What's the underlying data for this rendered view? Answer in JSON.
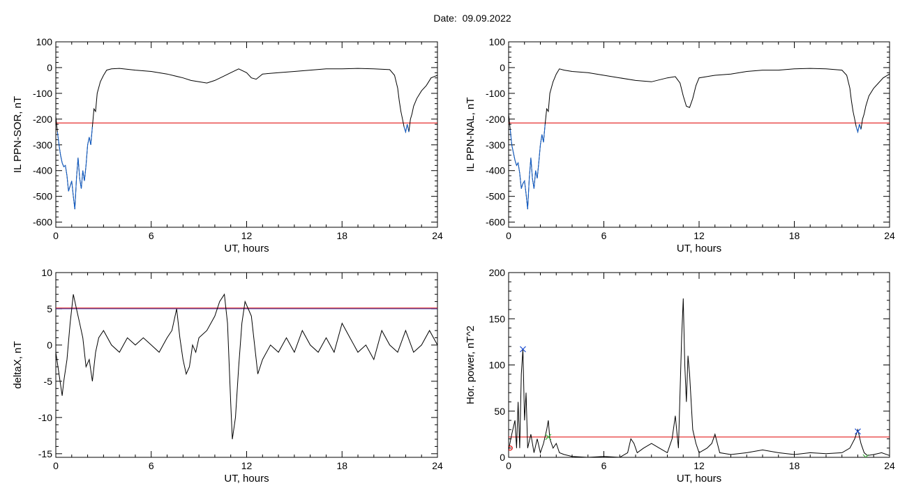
{
  "figure": {
    "title": "Date:  09.09.2022"
  },
  "chart_data": [
    {
      "type": "line",
      "ylabel": "IL PPN-SOR, nT",
      "xlabel": "UT, hours",
      "xlim": [
        0,
        24
      ],
      "ylim": [
        -620,
        100
      ],
      "xticks": [
        0,
        6,
        12,
        18,
        24
      ],
      "yticks": [
        100,
        0,
        -100,
        -200,
        -300,
        -400,
        -500,
        -600
      ],
      "threshold": {
        "value": -215,
        "color": "#e00000"
      },
      "series": [
        {
          "color": "#000000",
          "x": [
            0,
            0.1,
            0.2,
            0.3,
            0.4,
            0.5,
            0.6,
            0.7,
            0.8,
            0.9,
            1.0,
            1.1,
            1.2,
            1.3,
            1.4,
            1.5,
            1.6,
            1.7,
            1.8,
            1.9,
            2.0,
            2.1,
            2.2,
            2.3,
            2.4,
            2.5,
            2.6,
            2.8,
            3.0,
            3.2,
            3.5,
            4,
            5,
            6,
            7,
            8,
            8.5,
            9,
            9.5,
            10,
            10.5,
            11,
            11.5,
            12,
            12.3,
            12.6,
            13,
            14,
            15,
            16,
            17,
            18,
            19,
            20,
            21,
            21.3,
            21.5,
            21.6,
            21.7,
            21.8,
            21.9,
            22.0,
            22.1,
            22.2,
            22.3,
            22.4,
            22.5,
            22.7,
            23.0,
            23.3,
            23.6,
            24.0
          ],
          "y": [
            -190,
            -250,
            -300,
            -340,
            -370,
            -385,
            -380,
            -420,
            -480,
            -460,
            -440,
            -500,
            -550,
            -430,
            -350,
            -430,
            -470,
            -400,
            -440,
            -380,
            -300,
            -270,
            -300,
            -230,
            -160,
            -170,
            -100,
            -55,
            -30,
            -10,
            -5,
            -3,
            -10,
            -15,
            -25,
            -40,
            -50,
            -55,
            -60,
            -50,
            -35,
            -20,
            -5,
            -20,
            -40,
            -45,
            -25,
            -20,
            -15,
            -10,
            -5,
            -5,
            -3,
            -5,
            -8,
            -30,
            -80,
            -130,
            -170,
            -200,
            -230,
            -250,
            -220,
            -250,
            -200,
            -180,
            -150,
            -120,
            -90,
            -70,
            -40,
            -30
          ]
        },
        {
          "color": "#1060d0",
          "x": [
            0.1,
            0.2,
            0.3,
            0.4,
            0.5,
            0.6,
            0.7,
            0.8,
            0.9,
            1.0,
            1.1,
            1.2,
            1.3,
            1.4,
            1.5,
            1.6,
            1.7,
            1.8,
            1.9,
            2.0,
            2.1,
            2.2,
            2.3
          ],
          "y": [
            -250,
            -300,
            -340,
            -370,
            -385,
            -380,
            -420,
            -480,
            -460,
            -440,
            -500,
            -550,
            -430,
            -350,
            -430,
            -470,
            -400,
            -440,
            -380,
            -300,
            -270,
            -300,
            -230
          ]
        },
        {
          "color": "#1060d0",
          "x": [
            21.9,
            22.0,
            22.1,
            22.2
          ],
          "y": [
            -230,
            -250,
            -220,
            -250
          ]
        }
      ]
    },
    {
      "type": "line",
      "ylabel": "IL PPN-NAL, nT",
      "xlabel": "UT, hours",
      "xlim": [
        0,
        24
      ],
      "ylim": [
        -620,
        100
      ],
      "xticks": [
        0,
        6,
        12,
        18,
        24
      ],
      "yticks": [
        100,
        0,
        -100,
        -200,
        -300,
        -400,
        -500,
        -600
      ],
      "threshold": {
        "value": -215,
        "color": "#e00000"
      },
      "series": [
        {
          "color": "#000000",
          "x": [
            0,
            0.1,
            0.2,
            0.3,
            0.4,
            0.5,
            0.6,
            0.7,
            0.8,
            0.9,
            1.0,
            1.1,
            1.2,
            1.3,
            1.4,
            1.5,
            1.6,
            1.7,
            1.8,
            1.9,
            2.0,
            2.1,
            2.2,
            2.3,
            2.4,
            2.5,
            2.6,
            2.8,
            3.0,
            3.2,
            3.5,
            4,
            5,
            6,
            7,
            8,
            9,
            10,
            10.5,
            10.8,
            11.0,
            11.2,
            11.4,
            11.6,
            11.8,
            12,
            13,
            14,
            15,
            16,
            17,
            18,
            19,
            20,
            21,
            21.3,
            21.5,
            21.6,
            21.7,
            21.8,
            21.9,
            22.0,
            22.1,
            22.2,
            22.3,
            22.4,
            22.5,
            22.7,
            23.0,
            23.3,
            23.6,
            24.0
          ],
          "y": [
            -180,
            -240,
            -300,
            -330,
            -360,
            -380,
            -370,
            -410,
            -470,
            -450,
            -440,
            -490,
            -550,
            -430,
            -350,
            -430,
            -470,
            -400,
            -430,
            -370,
            -300,
            -260,
            -290,
            -220,
            -160,
            -170,
            -100,
            -55,
            -25,
            -5,
            -10,
            -15,
            -20,
            -30,
            -40,
            -50,
            -55,
            -40,
            -35,
            -60,
            -110,
            -150,
            -155,
            -120,
            -70,
            -40,
            -30,
            -25,
            -15,
            -10,
            -10,
            -5,
            -3,
            -5,
            -10,
            -30,
            -80,
            -130,
            -170,
            -200,
            -230,
            -250,
            -220,
            -240,
            -200,
            -180,
            -150,
            -110,
            -80,
            -60,
            -40,
            -25
          ]
        },
        {
          "color": "#1060d0",
          "x": [
            0.1,
            0.2,
            0.3,
            0.4,
            0.5,
            0.6,
            0.7,
            0.8,
            0.9,
            1.0,
            1.1,
            1.2,
            1.3,
            1.4,
            1.5,
            1.6,
            1.7,
            1.8,
            1.9,
            2.0,
            2.1,
            2.2,
            2.3
          ],
          "y": [
            -240,
            -300,
            -330,
            -360,
            -380,
            -370,
            -410,
            -470,
            -450,
            -440,
            -490,
            -550,
            -430,
            -350,
            -430,
            -470,
            -400,
            -430,
            -370,
            -300,
            -260,
            -290,
            -220
          ]
        },
        {
          "color": "#1060d0",
          "x": [
            21.9,
            22.0,
            22.1,
            22.2
          ],
          "y": [
            -230,
            -250,
            -220,
            -240
          ]
        }
      ]
    },
    {
      "type": "line",
      "ylabel": "deltaX, nT",
      "xlabel": "UT, hours",
      "xlim": [
        0,
        24
      ],
      "ylim": [
        -15.5,
        10
      ],
      "xticks": [
        0,
        6,
        12,
        18,
        24
      ],
      "yticks": [
        10,
        5,
        0,
        -5,
        -10,
        -15
      ],
      "threshold": {
        "value": 5.1,
        "color": "#e00000",
        "inner_color": "#3030a0"
      },
      "series": [
        {
          "color": "#000000",
          "x": [
            0,
            0.2,
            0.4,
            0.5,
            0.7,
            0.9,
            1.1,
            1.3,
            1.5,
            1.7,
            1.9,
            2.1,
            2.3,
            2.5,
            2.7,
            3,
            3.5,
            4,
            4.5,
            5,
            5.5,
            6,
            6.5,
            7,
            7.3,
            7.6,
            7.8,
            8,
            8.2,
            8.4,
            8.6,
            8.8,
            9,
            9.5,
            10,
            10.3,
            10.6,
            10.8,
            11,
            11.1,
            11.3,
            11.5,
            11.7,
            11.9,
            12.1,
            12.3,
            12.5,
            12.7,
            13,
            13.5,
            14,
            14.5,
            15,
            15.5,
            16,
            16.5,
            17,
            17.5,
            18,
            18.5,
            19,
            19.5,
            20,
            20.5,
            21,
            21.5,
            22,
            22.5,
            23,
            23.5,
            24
          ],
          "y": [
            -1,
            -4,
            -7,
            -5,
            -2,
            3,
            7,
            5,
            3,
            1,
            -3,
            -2,
            -5,
            -1,
            1,
            2,
            0,
            -1,
            1,
            0,
            1,
            0,
            -1,
            1,
            2,
            5,
            1,
            -2,
            -4,
            -3,
            0,
            -1,
            1,
            2,
            4,
            6,
            7,
            3,
            -8,
            -13,
            -10,
            -3,
            3,
            6,
            5,
            4,
            0,
            -4,
            -2,
            0,
            -1,
            1,
            -1,
            2,
            0,
            -1,
            1,
            -1,
            3,
            1,
            -1,
            0,
            -2,
            2,
            0,
            -1,
            2,
            -1,
            0,
            2,
            0
          ]
        }
      ]
    },
    {
      "type": "line",
      "ylabel": "Hor. power, nT^2",
      "xlabel": "UT, hours",
      "xlim": [
        0,
        24
      ],
      "ylim": [
        0,
        200
      ],
      "xticks": [
        0,
        6,
        12,
        18,
        24
      ],
      "yticks": [
        200,
        150,
        100,
        50,
        0
      ],
      "threshold": {
        "value": 22,
        "color": "#e00000"
      },
      "series": [
        {
          "color": "#000000",
          "x": [
            0,
            0.2,
            0.4,
            0.5,
            0.6,
            0.7,
            0.8,
            0.9,
            1.0,
            1.1,
            1.2,
            1.4,
            1.6,
            1.8,
            2.0,
            2.2,
            2.4,
            2.5,
            2.6,
            2.8,
            3.0,
            3.2,
            3.5,
            4,
            5,
            6,
            7,
            7.5,
            7.7,
            7.9,
            8.1,
            8.5,
            9,
            9.5,
            10,
            10.3,
            10.5,
            10.7,
            10.9,
            11.0,
            11.1,
            11.2,
            11.3,
            11.4,
            11.6,
            11.8,
            12,
            12.5,
            12.8,
            13,
            13.3,
            14,
            15,
            16,
            17,
            18,
            19,
            20,
            21,
            21.5,
            21.8,
            22.0,
            22.2,
            22.4,
            22.6,
            23,
            23.5,
            24
          ],
          "y": [
            8,
            25,
            40,
            10,
            60,
            10,
            90,
            117,
            40,
            70,
            10,
            25,
            5,
            20,
            5,
            15,
            30,
            40,
            20,
            10,
            15,
            5,
            3,
            1,
            0,
            1,
            0,
            5,
            20,
            15,
            5,
            10,
            15,
            10,
            5,
            20,
            45,
            10,
            130,
            172,
            100,
            60,
            110,
            90,
            30,
            15,
            5,
            10,
            15,
            25,
            5,
            3,
            5,
            8,
            5,
            3,
            5,
            4,
            5,
            10,
            20,
            30,
            15,
            5,
            2,
            3,
            5,
            2
          ]
        }
      ],
      "markers": [
        {
          "x": 0.9,
          "y": 117,
          "symbol": "x",
          "color": "#2050d0"
        },
        {
          "x": 22.0,
          "y": 28,
          "symbol": "x",
          "color": "#2050d0"
        },
        {
          "x": 2.5,
          "y": 22,
          "symbol": "x",
          "color": "#40b040"
        },
        {
          "x": 22.5,
          "y": 0,
          "symbol": "x",
          "color": "#40b040"
        },
        {
          "x": 0.1,
          "y": 10,
          "symbol": "o",
          "color": "#e00000"
        }
      ]
    }
  ]
}
